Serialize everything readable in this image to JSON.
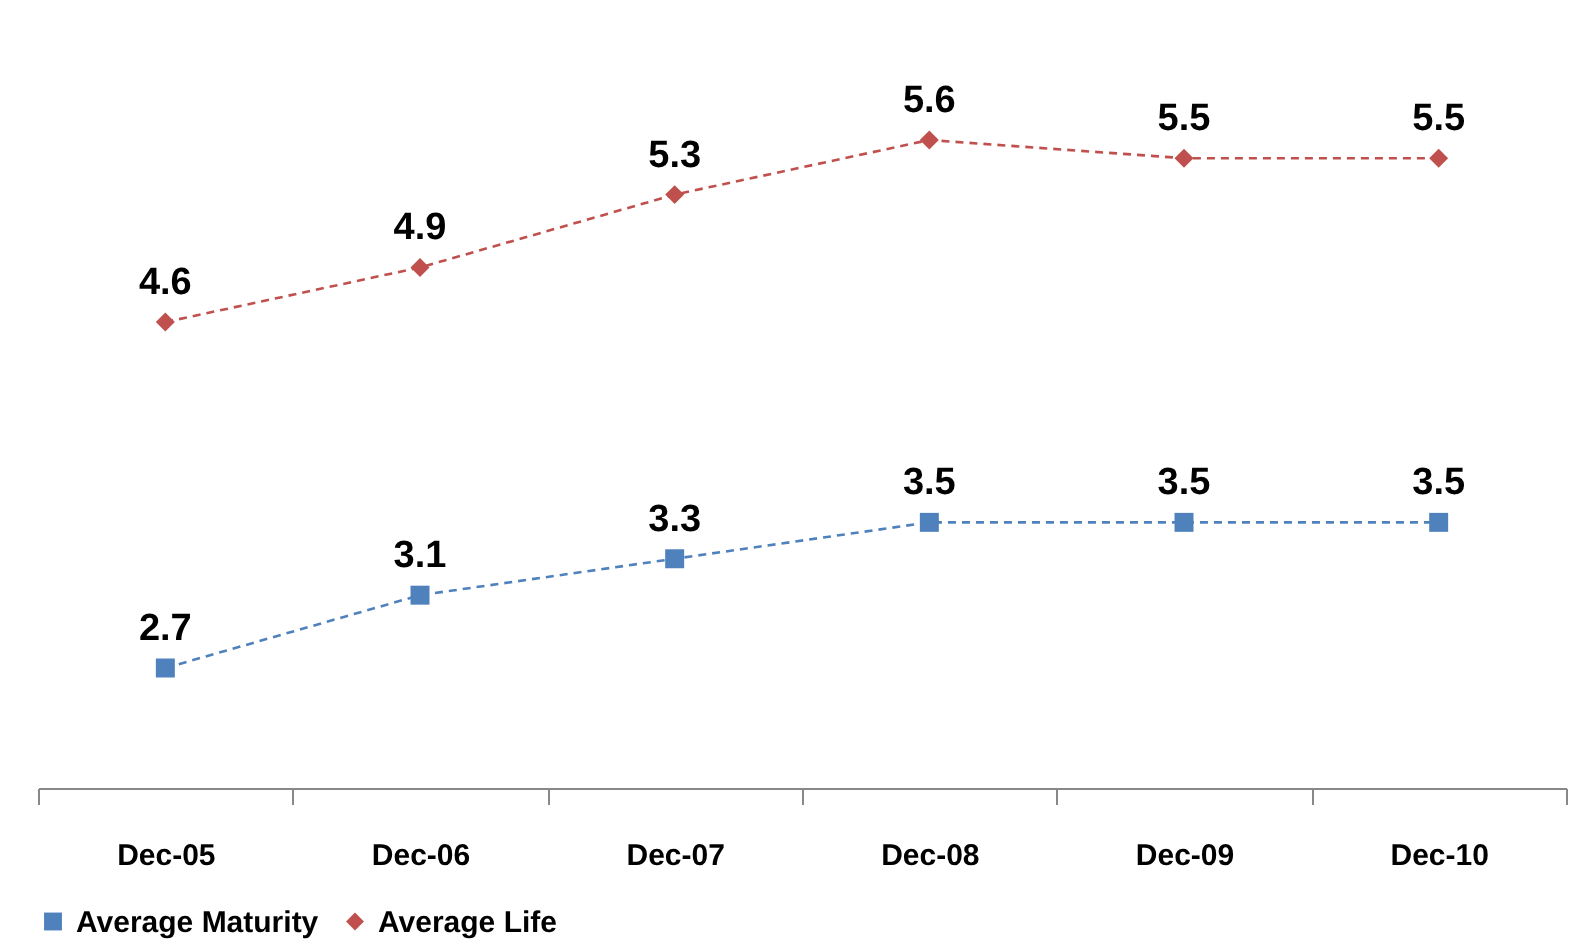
{
  "chart_data": {
    "type": "line",
    "categories": [
      "Dec-05",
      "Dec-06",
      "Dec-07",
      "Dec-08",
      "Dec-09",
      "Dec-10"
    ],
    "series": [
      {
        "name": "Average Maturity",
        "color": "#4f81bd",
        "marker": "square",
        "values": [
          2.7,
          3.1,
          3.3,
          3.5,
          3.5,
          3.5
        ]
      },
      {
        "name": "Average Life",
        "color": "#c0504d",
        "marker": "diamond",
        "values": [
          4.6,
          4.9,
          5.3,
          5.6,
          5.5,
          5.5
        ]
      }
    ],
    "tick_labels": "x",
    "data_labels": true,
    "line_style": "dashed",
    "grid": false,
    "legend": "bottom"
  }
}
